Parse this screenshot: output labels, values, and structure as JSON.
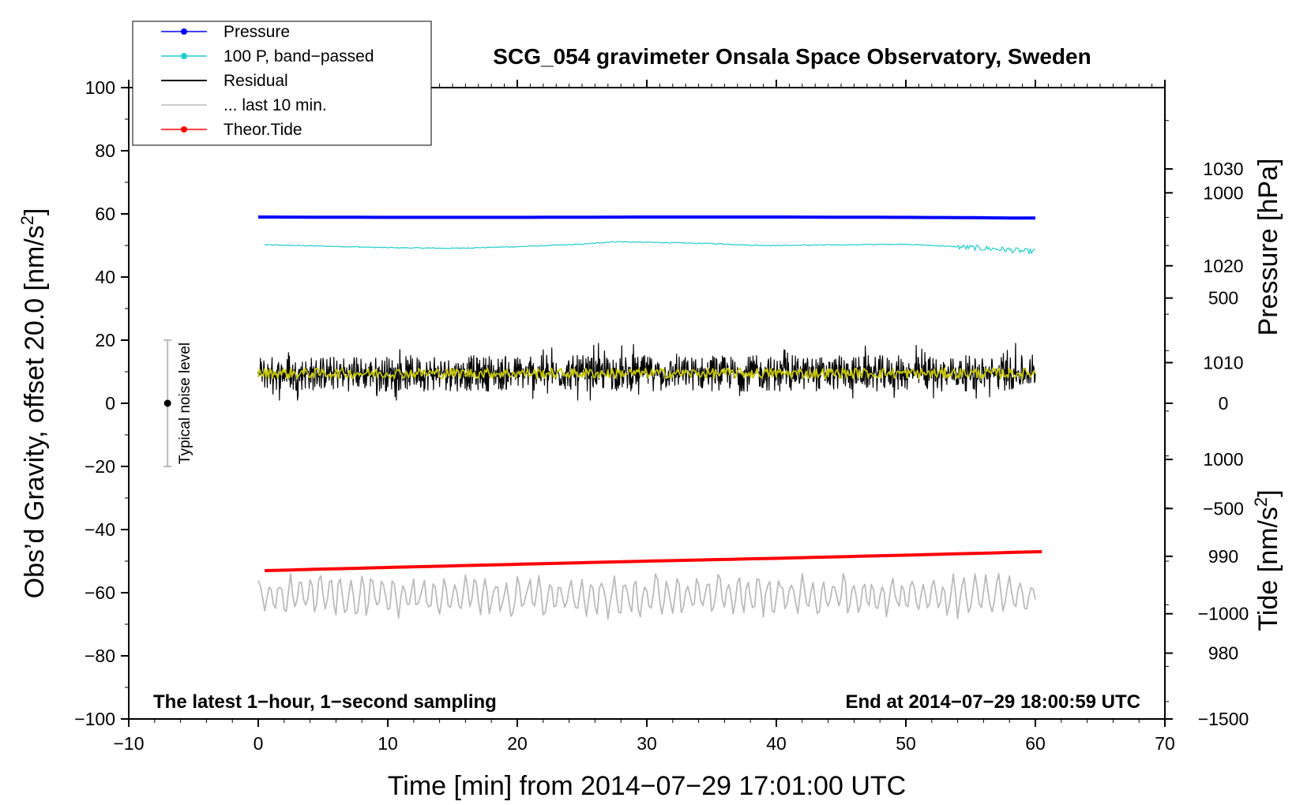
{
  "chart_data": {
    "type": "line",
    "title": "SCG_054 gravimeter Onsala Space Observatory, Sweden",
    "xlabel": "Time [min] from 2014−07−29 17:01:00 UTC",
    "ylabel_left_main": "Obs’d Gravity, offset 20.0 [nm/s",
    "ylabel_left_sup": "2",
    "ylabel_left_end": "]",
    "ylabel_right_pressure": "Pressure [hPa]",
    "ylabel_right_tide_main": "Tide [nm/s",
    "ylabel_right_tide_sup": "2",
    "ylabel_right_tide_end": "]",
    "xlim": [
      -10,
      70
    ],
    "ylim": [
      -100,
      100
    ],
    "pressure_ylim": [
      973.2,
      1038.4
    ],
    "tide_ylim": [
      -1500,
      1500
    ],
    "x_ticks": [
      "−10",
      "0",
      "10",
      "20",
      "30",
      "40",
      "50",
      "60",
      "70"
    ],
    "x_tick_values": [
      -10,
      0,
      10,
      20,
      30,
      40,
      50,
      60,
      70
    ],
    "y_ticks": [
      "100",
      "80",
      "60",
      "40",
      "20",
      "0",
      "−20",
      "−40",
      "−60",
      "−80",
      "−100"
    ],
    "y_tick_values": [
      100,
      80,
      60,
      40,
      20,
      0,
      -20,
      -40,
      -60,
      -80,
      -100
    ],
    "pressure_ticks": [
      "1030",
      "1020",
      "1010",
      "1000",
      "990",
      "980"
    ],
    "pressure_tick_values": [
      1030,
      1020,
      1010,
      1000,
      990,
      980
    ],
    "tide_ticks": [
      "1000",
      "500",
      "0",
      "−500",
      "−1000",
      "−1500"
    ],
    "tide_tick_values": [
      1000,
      500,
      0,
      -500,
      -1000,
      -1500
    ],
    "annotation_left": "The latest 1−hour, 1−second sampling",
    "annotation_right": "End at 2014−07−29 18:00:59 UTC",
    "noise_label": "Typical noise level",
    "noise_bar": {
      "x": -7,
      "center": 0,
      "low": -20,
      "high": 20
    },
    "legend_position": "top-left",
    "legend": [
      {
        "label": "Pressure",
        "color": "#0000ff",
        "marker": true
      },
      {
        "label": "100 P, band−passed",
        "color": "#22cccc",
        "marker": true
      },
      {
        "label": "Residual",
        "color": "#000000",
        "marker": false
      },
      {
        "label": "... last 10 min.",
        "color": "#bbbbbb",
        "marker": false
      },
      {
        "label": "Theor.Tide",
        "color": "#ff0000",
        "marker": true
      }
    ],
    "series": [
      {
        "name": "Pressure",
        "color": "#0000ff",
        "axis": "left",
        "x": [
          0,
          10,
          20,
          30,
          40,
          50,
          55,
          58,
          60
        ],
        "values": [
          59.0,
          58.9,
          58.9,
          59.0,
          59.0,
          58.9,
          58.8,
          58.7,
          58.7
        ]
      },
      {
        "name": "100 P, band−passed",
        "color": "#22cccc",
        "axis": "left",
        "x": [
          0.5,
          5,
          10,
          15,
          20,
          25,
          27.5,
          30,
          35,
          38,
          40,
          45,
          50,
          53,
          55,
          57,
          58,
          59,
          60
        ],
        "values": [
          50.2,
          49.8,
          49.3,
          49.1,
          49.6,
          50.4,
          51.2,
          51.0,
          50.6,
          50.1,
          50.0,
          50.2,
          50.4,
          49.8,
          49.3,
          48.9,
          48.6,
          48.2,
          48.1
        ]
      },
      {
        "name": "Residual",
        "color": "#000000",
        "axis": "left",
        "x_range": [
          0,
          60
        ],
        "mean": 9.5,
        "envelope": [
          1,
          19
        ]
      },
      {
        "name": "Residual (smoothed)",
        "color": "#c8c800",
        "axis": "left",
        "x_range": [
          0,
          60
        ],
        "mean": 9.5,
        "envelope": [
          7,
          13
        ]
      },
      {
        "name": "... last 10 min.",
        "color": "#bbbbbb",
        "axis": "left",
        "x_range": [
          0,
          60
        ],
        "mean": -61,
        "envelope": [
          -69,
          -54
        ]
      },
      {
        "name": "Theor.Tide",
        "color": "#ff0000",
        "axis": "left",
        "x": [
          0.5,
          10,
          20,
          30,
          40,
          50,
          60.5
        ],
        "values": [
          -53.0,
          -52.0,
          -51.0,
          -50.0,
          -49.1,
          -48.1,
          -47.0
        ]
      }
    ]
  }
}
